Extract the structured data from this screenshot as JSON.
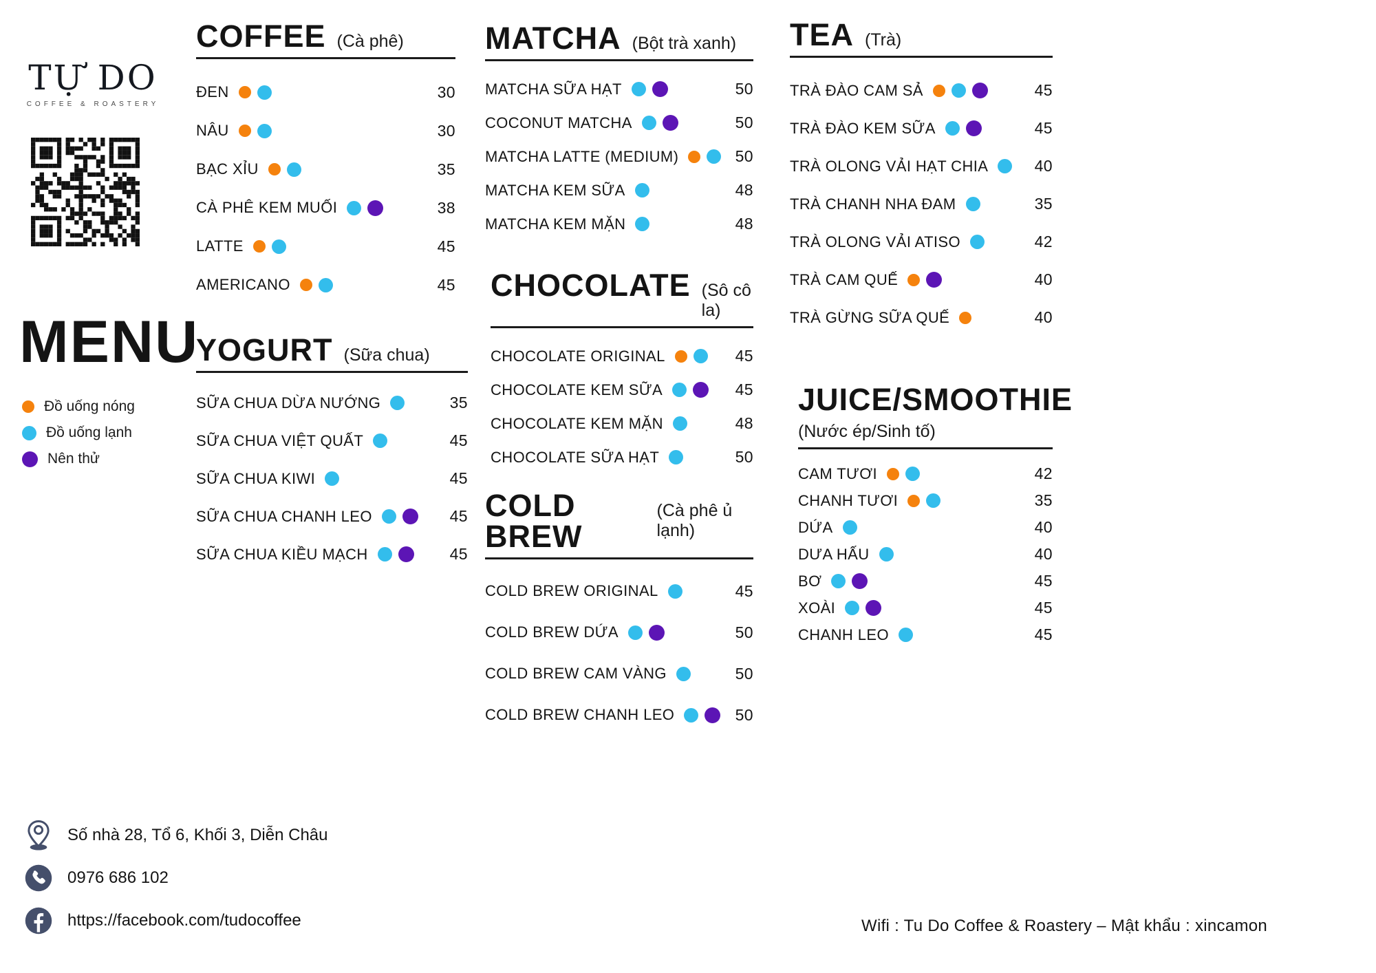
{
  "brand": {
    "name": "TỰ DO",
    "tagline": "COFFEE  &  ROASTERY"
  },
  "menu_title": "MENU",
  "colors": {
    "hot": "#F5820D",
    "cold": "#33BDEC",
    "try": "#5C15B5",
    "icon": "#454f6b"
  },
  "legend": [
    {
      "key": "hot",
      "label": "Đồ uống nóng"
    },
    {
      "key": "cold",
      "label": "Đồ uống lạnh"
    },
    {
      "key": "try",
      "label": "Nên thử"
    }
  ],
  "contact": {
    "address": "Số nhà 28, Tổ 6, Khối 3, Diễn Châu",
    "phone": "0976 686 102",
    "facebook": "https://facebook.com/tudocoffee"
  },
  "wifi_note": "Wifi : Tu Do Coffee & Roastery –  Mật khẩu : xincamon",
  "sections": [
    {
      "title": "COFFEE",
      "subtitle": "(Cà phê)",
      "items": [
        {
          "name": "ĐEN",
          "dots": [
            "hot",
            "cold"
          ],
          "price": "30"
        },
        {
          "name": "NÂU",
          "dots": [
            "hot",
            "cold"
          ],
          "price": "30"
        },
        {
          "name": "BẠC XỈU",
          "dots": [
            "hot",
            "cold"
          ],
          "price": "35"
        },
        {
          "name": "CÀ PHÊ KEM MUỐI",
          "dots": [
            "cold",
            "try"
          ],
          "price": "38"
        },
        {
          "name": "LATTE",
          "dots": [
            "hot",
            "cold"
          ],
          "price": "45"
        },
        {
          "name": "AMERICANO",
          "dots": [
            "hot",
            "cold"
          ],
          "price": "45"
        }
      ]
    },
    {
      "title": "YOGURT",
      "subtitle": "(Sữa chua)",
      "items": [
        {
          "name": "SỮA CHUA DỪA NƯỚNG",
          "dots": [
            "cold"
          ],
          "price": "35"
        },
        {
          "name": "SỮA CHUA VIỆT QUẤT",
          "dots": [
            "cold"
          ],
          "price": "45"
        },
        {
          "name": "SỮA CHUA KIWI",
          "dots": [
            "cold"
          ],
          "price": "45"
        },
        {
          "name": "SỮA CHUA CHANH LEO",
          "dots": [
            "cold",
            "try"
          ],
          "price": "45"
        },
        {
          "name": "SỮA CHUA KIỀU MẠCH",
          "dots": [
            "cold",
            "try"
          ],
          "price": "45"
        }
      ]
    },
    {
      "title": "MATCHA",
      "subtitle": "(Bột trà xanh)",
      "items": [
        {
          "name": "MATCHA SỮA HẠT",
          "dots": [
            "cold",
            "try"
          ],
          "price": "50"
        },
        {
          "name": "COCONUT MATCHA",
          "dots": [
            "cold",
            "try"
          ],
          "price": "50"
        },
        {
          "name": "MATCHA LATTE (MEDIUM)",
          "dots": [
            "hot",
            "cold"
          ],
          "price": "50"
        },
        {
          "name": "MATCHA KEM SỮA",
          "dots": [
            "cold"
          ],
          "price": "48"
        },
        {
          "name": "MATCHA KEM MẶN",
          "dots": [
            "cold"
          ],
          "price": "48"
        }
      ]
    },
    {
      "title": "CHOCOLATE",
      "subtitle": "(Sô cô la)",
      "items": [
        {
          "name": "CHOCOLATE ORIGINAL",
          "dots": [
            "hot",
            "cold"
          ],
          "price": "45"
        },
        {
          "name": "CHOCOLATE KEM SỮA",
          "dots": [
            "cold",
            "try"
          ],
          "price": "45"
        },
        {
          "name": "CHOCOLATE KEM MẶN",
          "dots": [
            "cold"
          ],
          "price": "48"
        },
        {
          "name": "CHOCOLATE SỮA HẠT",
          "dots": [
            "cold"
          ],
          "price": "50"
        }
      ]
    },
    {
      "title": "COLD BREW",
      "subtitle": "(Cà phê ủ lạnh)",
      "items": [
        {
          "name": "COLD BREW ORIGINAL",
          "dots": [
            "cold"
          ],
          "price": "45"
        },
        {
          "name": "COLD BREW DỨA",
          "dots": [
            "cold",
            "try"
          ],
          "price": "50"
        },
        {
          "name": "COLD BREW CAM VÀNG",
          "dots": [
            "cold"
          ],
          "price": "50"
        },
        {
          "name": "COLD BREW CHANH LEO",
          "dots": [
            "cold",
            "try"
          ],
          "price": "50"
        }
      ]
    },
    {
      "title": "TEA",
      "subtitle": "(Trà)",
      "items": [
        {
          "name": "TRÀ ĐÀO CAM SẢ",
          "dots": [
            "hot",
            "cold",
            "try"
          ],
          "price": "45"
        },
        {
          "name": "TRÀ ĐÀO KEM SỮA",
          "dots": [
            "cold",
            "try"
          ],
          "price": "45"
        },
        {
          "name": "TRÀ OLONG VẢI HẠT CHIA",
          "dots": [
            "cold"
          ],
          "price": "40"
        },
        {
          "name": "TRÀ CHANH NHA ĐAM",
          "dots": [
            "cold"
          ],
          "price": "35"
        },
        {
          "name": "TRÀ OLONG VẢI ATISO",
          "dots": [
            "cold"
          ],
          "price": "42"
        },
        {
          "name": "TRÀ CAM QUẾ",
          "dots": [
            "hot",
            "try"
          ],
          "price": "40"
        },
        {
          "name": "TRÀ GỪNG SỮA QUẾ",
          "dots": [
            "hot"
          ],
          "price": "40"
        }
      ]
    },
    {
      "title": "JUICE/SMOOTHIE",
      "subtitle": "(Nước ép/Sinh tố)",
      "items": [
        {
          "name": "CAM TƯƠI",
          "dots": [
            "hot",
            "cold"
          ],
          "price": "42"
        },
        {
          "name": "CHANH TƯƠI",
          "dots": [
            "hot",
            "cold"
          ],
          "price": "35"
        },
        {
          "name": "DỨA",
          "dots": [
            "cold"
          ],
          "price": "40"
        },
        {
          "name": "DƯA HẤU",
          "dots": [
            "cold"
          ],
          "price": "40"
        },
        {
          "name": "BƠ",
          "dots": [
            "cold",
            "try"
          ],
          "price": "45"
        },
        {
          "name": "XOÀI",
          "dots": [
            "cold",
            "try"
          ],
          "price": "45"
        },
        {
          "name": "CHANH LEO",
          "dots": [
            "cold"
          ],
          "price": "45"
        }
      ]
    }
  ]
}
